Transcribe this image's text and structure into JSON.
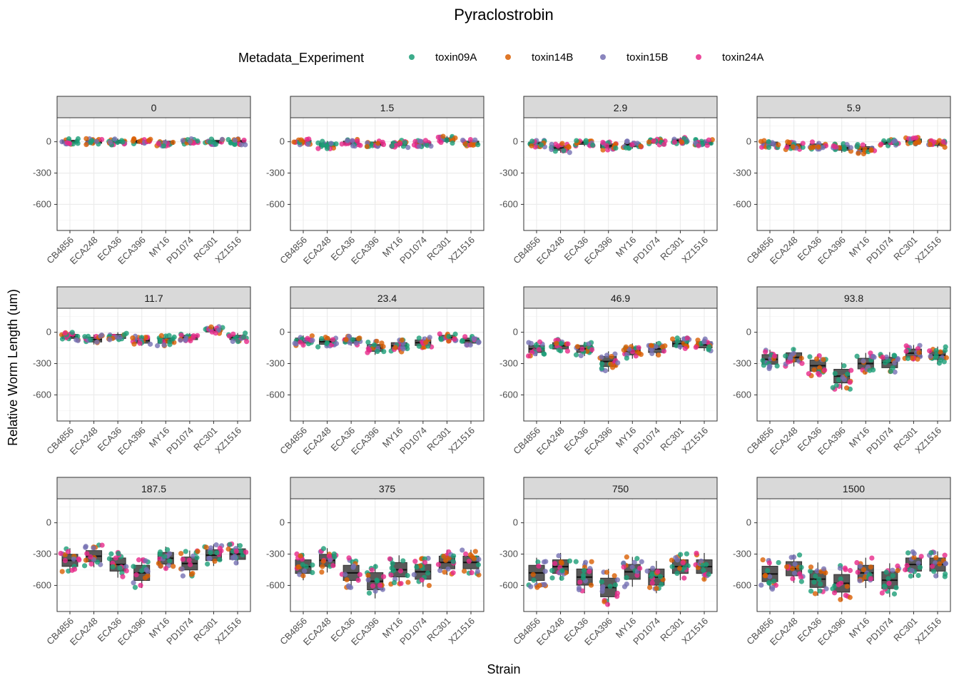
{
  "chart_data": {
    "type": "scatter",
    "subtype": "faceted boxplot with jittered points",
    "title": "Pyraclostrobin",
    "xlabel": "Strain",
    "ylabel": "Relative Worm Length (um)",
    "legend": {
      "title": "Metadata_Experiment",
      "placement": "top",
      "entries": [
        {
          "name": "toxin09A",
          "color": "#1B9E77"
        },
        {
          "name": "toxin14B",
          "color": "#D95F02"
        },
        {
          "name": "toxin15B",
          "color": "#7570B3"
        },
        {
          "name": "toxin24A",
          "color": "#E7298A"
        }
      ]
    },
    "categories": [
      "CB4856",
      "ECA248",
      "ECA36",
      "ECA396",
      "MY16",
      "PD1074",
      "RC301",
      "XZ1516"
    ],
    "y_ticks": [
      0,
      -300,
      -600
    ],
    "ylim": [
      -850,
      230
    ],
    "grid": true,
    "facet_layout": {
      "rows": 3,
      "cols": 4
    },
    "facets": [
      {
        "label": "0",
        "medians": [
          0,
          0,
          0,
          0,
          -10,
          0,
          0,
          0
        ]
      },
      {
        "label": "1.5",
        "medians": [
          0,
          -30,
          -10,
          -20,
          -20,
          -20,
          20,
          -10
        ]
      },
      {
        "label": "2.9",
        "medians": [
          -20,
          -60,
          -10,
          -40,
          -30,
          0,
          10,
          -10
        ]
      },
      {
        "label": "5.9",
        "medians": [
          -20,
          -40,
          -40,
          -60,
          -70,
          -10,
          10,
          -20
        ]
      },
      {
        "label": "11.7",
        "medians": [
          -40,
          -70,
          -40,
          -80,
          -80,
          -50,
          20,
          -50
        ]
      },
      {
        "label": "23.4",
        "medians": [
          -80,
          -90,
          -80,
          -150,
          -130,
          -100,
          -50,
          -80
        ]
      },
      {
        "label": "46.9",
        "medians": [
          -160,
          -130,
          -160,
          -280,
          -180,
          -160,
          -110,
          -120
        ]
      },
      {
        "label": "93.8",
        "medians": [
          -260,
          -240,
          -320,
          -420,
          -300,
          -290,
          -200,
          -220
        ]
      },
      {
        "label": "187.5",
        "medians": [
          -360,
          -320,
          -400,
          -480,
          -340,
          -390,
          -310,
          -300
        ]
      },
      {
        "label": "375",
        "medians": [
          -420,
          -360,
          -480,
          -560,
          -450,
          -470,
          -380,
          -380
        ]
      },
      {
        "label": "750",
        "medians": [
          -480,
          -420,
          -520,
          -620,
          -470,
          -520,
          -420,
          -420
        ]
      },
      {
        "label": "1500",
        "medians": [
          -490,
          -440,
          -540,
          -580,
          -480,
          -550,
          -400,
          -400
        ]
      }
    ]
  }
}
